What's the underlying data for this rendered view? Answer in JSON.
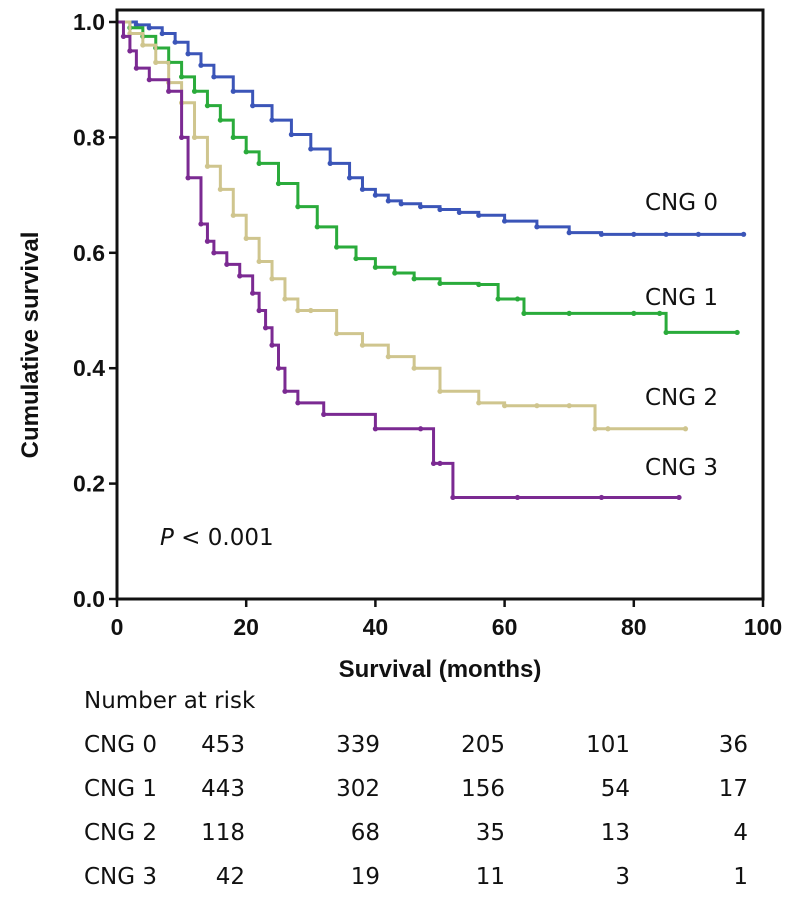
{
  "chart_data": {
    "type": "line",
    "step": true,
    "xlabel": "Survival (months)",
    "ylabel": "Cumulative survival",
    "xlim": [
      0,
      100
    ],
    "ylim": [
      0.0,
      1.0
    ],
    "xticks": [
      0,
      20,
      40,
      60,
      80,
      100
    ],
    "yticks": [
      0.0,
      0.2,
      0.4,
      0.6,
      0.8,
      1.0
    ],
    "ytick_labels": [
      "0.0",
      "0.2",
      "0.4",
      "0.6",
      "0.8",
      "1.0"
    ],
    "grid": false,
    "annotation": {
      "italic": "P",
      "text": " < 0.001"
    },
    "series": [
      {
        "name": "CNG 0",
        "color": "#3b55b8",
        "x": [
          0,
          3,
          5,
          7,
          9,
          11,
          13,
          15,
          18,
          21,
          24,
          27,
          30,
          33,
          36,
          38,
          40,
          42,
          44,
          47,
          50,
          53,
          56,
          60,
          65,
          70,
          75,
          80,
          85,
          90,
          97
        ],
        "y": [
          1.0,
          0.995,
          0.99,
          0.98,
          0.965,
          0.945,
          0.925,
          0.905,
          0.88,
          0.855,
          0.83,
          0.805,
          0.78,
          0.755,
          0.73,
          0.71,
          0.7,
          0.69,
          0.685,
          0.68,
          0.675,
          0.67,
          0.665,
          0.655,
          0.645,
          0.635,
          0.632,
          0.632,
          0.632,
          0.632,
          0.632
        ]
      },
      {
        "name": "CNG 1",
        "color": "#2aab3b",
        "x": [
          0,
          2,
          4,
          6,
          8,
          10,
          12,
          14,
          16,
          18,
          20,
          22,
          25,
          28,
          31,
          34,
          37,
          40,
          43,
          46,
          50,
          56,
          59,
          62,
          63,
          70,
          80,
          84,
          85,
          96
        ],
        "y": [
          1.0,
          0.99,
          0.975,
          0.955,
          0.93,
          0.905,
          0.88,
          0.855,
          0.83,
          0.8,
          0.775,
          0.755,
          0.72,
          0.68,
          0.645,
          0.61,
          0.59,
          0.575,
          0.565,
          0.555,
          0.547,
          0.545,
          0.52,
          0.52,
          0.495,
          0.495,
          0.495,
          0.495,
          0.462,
          0.462
        ]
      },
      {
        "name": "CNG 2",
        "color": "#cfc58e",
        "x": [
          0,
          2,
          4,
          6,
          8,
          10,
          12,
          14,
          16,
          18,
          20,
          22,
          24,
          26,
          28,
          30,
          34,
          38,
          42,
          46,
          50,
          56,
          60,
          65,
          70,
          74,
          76,
          88
        ],
        "y": [
          1.0,
          0.98,
          0.96,
          0.93,
          0.895,
          0.86,
          0.8,
          0.75,
          0.71,
          0.665,
          0.625,
          0.585,
          0.555,
          0.52,
          0.5,
          0.5,
          0.46,
          0.44,
          0.42,
          0.4,
          0.36,
          0.34,
          0.335,
          0.335,
          0.335,
          0.295,
          0.295,
          0.295
        ]
      },
      {
        "name": "CNG 3",
        "color": "#7b2a92",
        "x": [
          0,
          1,
          2,
          3,
          5,
          8,
          10,
          11,
          13,
          14,
          15,
          17,
          19,
          21,
          22,
          23,
          24,
          25,
          26,
          28,
          32,
          40,
          47,
          49,
          50,
          52,
          62,
          75,
          87
        ],
        "y": [
          1.0,
          0.975,
          0.95,
          0.92,
          0.9,
          0.88,
          0.8,
          0.73,
          0.65,
          0.62,
          0.6,
          0.58,
          0.56,
          0.53,
          0.5,
          0.47,
          0.44,
          0.4,
          0.36,
          0.34,
          0.32,
          0.295,
          0.295,
          0.235,
          0.235,
          0.176,
          0.176,
          0.176,
          0.176
        ]
      }
    ]
  },
  "risk_table": {
    "title": "Number at risk",
    "rows": [
      {
        "label": "CNG 0",
        "values": [
          "453",
          "339",
          "205",
          "101",
          "36"
        ]
      },
      {
        "label": "CNG 1",
        "values": [
          "443",
          "302",
          "156",
          "54",
          "17"
        ]
      },
      {
        "label": "CNG 2",
        "values": [
          "118",
          "68",
          "35",
          "13",
          "4"
        ]
      },
      {
        "label": "CNG 3",
        "values": [
          "42",
          "19",
          "11",
          "3",
          "1"
        ]
      }
    ]
  }
}
